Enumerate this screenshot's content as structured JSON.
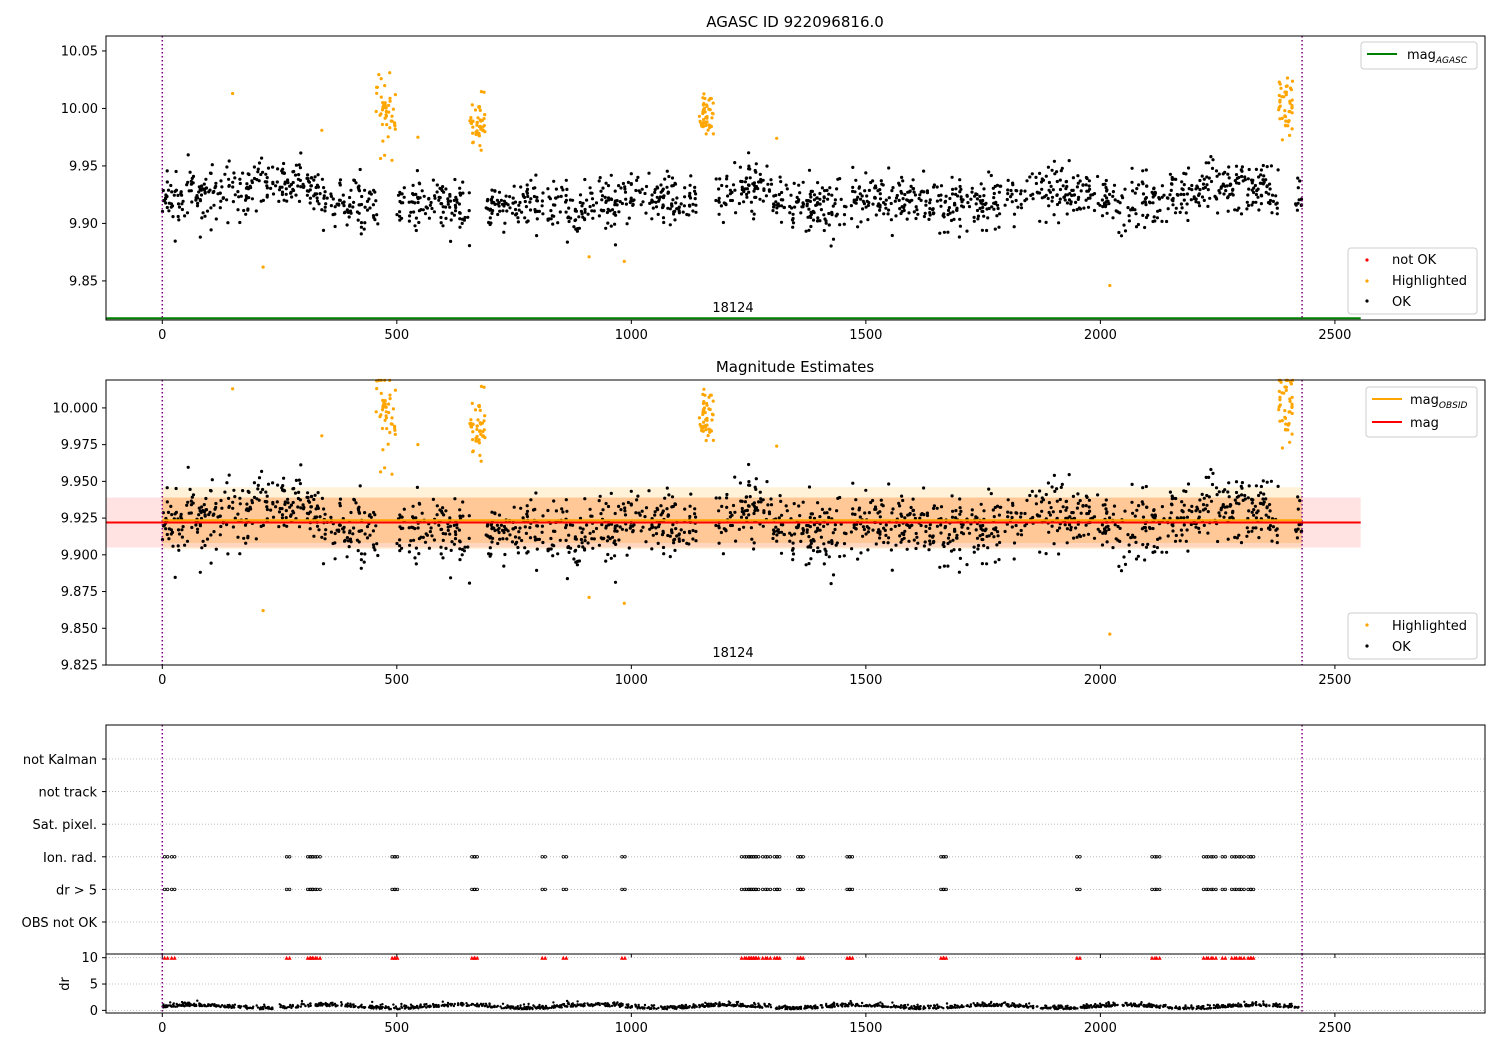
{
  "chart_data": [
    {
      "type": "scatter",
      "title": "AGASC ID 922096816.0",
      "xlim": [
        -120,
        2820
      ],
      "ylim": [
        9.816,
        10.063
      ],
      "xticks": [
        0,
        500,
        1000,
        1500,
        2000,
        2500
      ],
      "yticks": [
        9.85,
        9.9,
        9.95,
        10.0,
        10.05
      ],
      "ytick_labels": [
        "9.85",
        "9.90",
        "9.95",
        "10.00",
        "10.05"
      ],
      "obs_boundaries": [
        0,
        2430
      ],
      "obs_label": "18124",
      "obs_label_x": 1215,
      "mag_agasc": 9.8175,
      "mag_agasc_x": [
        -120,
        2555
      ],
      "baseline": 9.922,
      "noise": 0.018,
      "highlighted_clusters": [
        {
          "x_start": 455,
          "x_end": 500,
          "center": 9.995,
          "spread": 0.015
        },
        {
          "x_start": 655,
          "x_end": 690,
          "center": 9.985,
          "spread": 0.01
        },
        {
          "x_start": 1145,
          "x_end": 1175,
          "center": 9.99,
          "spread": 0.01
        },
        {
          "x_start": 2380,
          "x_end": 2410,
          "center": 10.0,
          "spread": 0.012
        }
      ],
      "highlighted_singles": [
        [
          150,
          10.013
        ],
        [
          215,
          9.862
        ],
        [
          340,
          9.981
        ],
        [
          545,
          9.975
        ],
        [
          910,
          9.871
        ],
        [
          985,
          9.867
        ],
        [
          1310,
          9.974
        ],
        [
          2020,
          9.846
        ]
      ],
      "legend_upper": {
        "entries": [
          "mag_AGASC"
        ],
        "label_main": "mag",
        "label_sub": "AGASC",
        "color": "#008000"
      },
      "legend_lower": {
        "entries": [
          "not OK",
          "Highlighted",
          "OK"
        ],
        "colors": [
          "#ff0000",
          "#ffa500",
          "#000000"
        ]
      }
    },
    {
      "type": "scatter",
      "title": "Magnitude Estimates",
      "xlim": [
        -120,
        2820
      ],
      "ylim": [
        9.825,
        10.019
      ],
      "xticks": [
        0,
        500,
        1000,
        1500,
        2000,
        2500
      ],
      "yticks": [
        9.825,
        9.85,
        9.875,
        9.9,
        9.925,
        9.95,
        9.975,
        10.0
      ],
      "ytick_labels": [
        "9.825",
        "9.850",
        "9.875",
        "9.900",
        "9.925",
        "9.950",
        "9.975",
        "10.000"
      ],
      "obs_boundaries": [
        0,
        2430
      ],
      "obs_label": "18124",
      "obs_label_x": 1215,
      "mag_obsid": 9.9235,
      "mag_obsid_x": [
        0,
        2430
      ],
      "mag": 9.922,
      "mag_x": [
        -120,
        2555
      ],
      "bands": [
        {
          "y0": 9.904,
          "y1": 9.946,
          "x0": 0,
          "x1": 2430,
          "color": "#ffa500",
          "opacity": 0.15
        },
        {
          "y0": 9.908,
          "y1": 9.939,
          "x0": 0,
          "x1": 2430,
          "color": "#ffa500",
          "opacity": 0.22
        },
        {
          "y0": 9.905,
          "y1": 9.939,
          "x0": -120,
          "x1": 2555,
          "color": "#ff0000",
          "opacity": 0.11
        }
      ],
      "legend_upper": {
        "entries": [
          "mag_OBSID",
          "mag"
        ],
        "label_main": "mag",
        "label_sub": "OBSID",
        "label2": "mag",
        "colors": [
          "#ffa500",
          "#ff0000"
        ]
      },
      "legend_lower": {
        "entries": [
          "Highlighted",
          "OK"
        ],
        "colors": [
          "#ffa500",
          "#000000"
        ]
      }
    },
    {
      "type": "scatter",
      "title": "",
      "xlim": [
        -120,
        2820
      ],
      "categories": [
        "not Kalman",
        "not track",
        "Sat. pixel.",
        "Ion. rad.",
        "dr > 5",
        "OBS not OK"
      ],
      "flag_x": [
        5,
        20,
        265,
        310,
        315,
        320,
        330,
        490,
        495,
        660,
        665,
        810,
        855,
        980,
        1235,
        1245,
        1250,
        1255,
        1260,
        1265,
        1280,
        1290,
        1305,
        1310,
        1355,
        1360,
        1460,
        1465,
        1660,
        1665,
        1950,
        2110,
        2120,
        2220,
        2230,
        2240,
        2260,
        2280,
        2290,
        2300,
        2315,
        2320
      ],
      "flag_rows": [
        "Ion. rad.",
        "dr > 5"
      ],
      "obs_boundaries": [
        0,
        2430
      ],
      "xticks": [
        0,
        500,
        1000,
        1500,
        2000,
        2500
      ]
    },
    {
      "type": "scatter",
      "title": "",
      "ylabel": "dr",
      "xlim": [
        -120,
        2820
      ],
      "ylim": [
        -0.5,
        10.7
      ],
      "yticks": [
        0,
        5,
        10
      ],
      "ytick_labels": [
        "0",
        "5",
        "10"
      ],
      "xticks": [
        0,
        500,
        1000,
        1500,
        2000,
        2500
      ],
      "xtick_labels": [
        "0",
        "500",
        "1000",
        "1500",
        "2000",
        "2500"
      ],
      "dr_range": [
        0,
        2430
      ],
      "dr_typical": 0.5,
      "clipped_value": 10,
      "obs_boundaries": [
        0,
        2430
      ]
    }
  ]
}
